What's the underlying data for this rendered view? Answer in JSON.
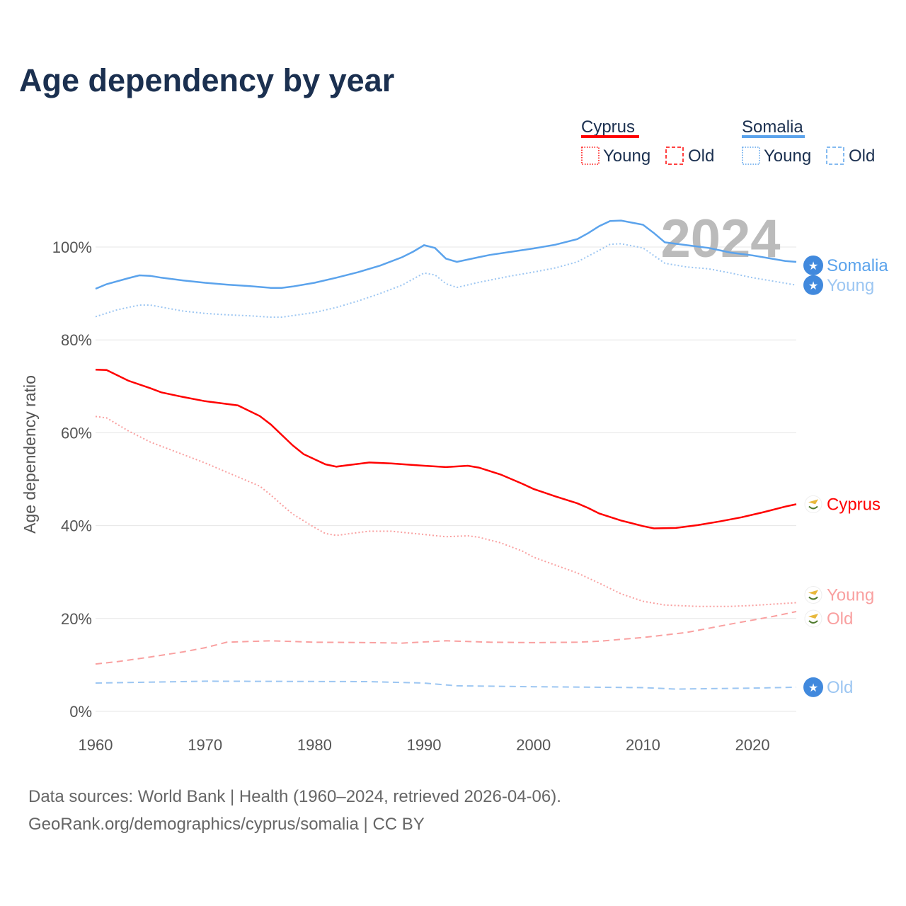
{
  "title": "Age dependency by year",
  "footer": {
    "line1": "Data sources: World Bank | Health (1960–2024, retrieved 2026-04-06).",
    "line2": "GeoRank.org/demographics/cyprus/somalia | CC BY"
  },
  "legend": {
    "groups": [
      {
        "name": "Cyprus",
        "color": "#ff0000",
        "young": "Young",
        "old": "Old"
      },
      {
        "name": "Somalia",
        "color": "#5ba3ec",
        "young": "Young",
        "old": "Old"
      }
    ]
  },
  "chart_data": {
    "type": "line",
    "title": "Age dependency by year",
    "xlabel": "",
    "ylabel": "Age dependency ratio",
    "xlim": [
      1960,
      2024
    ],
    "ylim": [
      0,
      110
    ],
    "x_ticks": [
      "1960",
      "1970",
      "1980",
      "1990",
      "2000",
      "2010",
      "2020"
    ],
    "y_ticks": [
      "0%",
      "20%",
      "40%",
      "60%",
      "80%",
      "100%"
    ],
    "grid": true,
    "current_year_label": "2024",
    "series": [
      {
        "name": "Somalia",
        "end_label": "Somalia",
        "color": "#5ba3ec",
        "style": "solid",
        "icon": "somalia-flag",
        "x": [
          1960,
          1961,
          1963,
          1964,
          1965,
          1966,
          1968,
          1970,
          1972,
          1974,
          1976,
          1977,
          1978,
          1980,
          1982,
          1984,
          1986,
          1988,
          1989,
          1990,
          1991,
          1992,
          1993,
          1995,
          1996,
          1998,
          2000,
          2002,
          2004,
          2005,
          2006,
          2007,
          2008,
          2010,
          2011,
          2012,
          2014,
          2016,
          2018,
          2020,
          2022,
          2023,
          2024
        ],
        "y": [
          91,
          92,
          93.3,
          93.9,
          93.8,
          93.4,
          92.8,
          92.3,
          91.9,
          91.6,
          91.2,
          91.2,
          91.5,
          92.3,
          93.4,
          94.6,
          96,
          97.8,
          99,
          100.4,
          99.8,
          97.5,
          96.8,
          97.8,
          98.3,
          99,
          99.7,
          100.5,
          101.7,
          103,
          104.5,
          105.6,
          105.7,
          104.8,
          103,
          101,
          100.4,
          99.8,
          98.8,
          98.2,
          97.4,
          97,
          96.8
        ]
      },
      {
        "name": "Somalia Young",
        "end_label": "Young",
        "color": "#9cc6f2",
        "style": "dotted",
        "icon": "somalia-flag",
        "x": [
          1960,
          1962,
          1964,
          1965,
          1968,
          1970,
          1972,
          1974,
          1976,
          1977,
          1980,
          1982,
          1984,
          1986,
          1988,
          1990,
          1991,
          1992,
          1993,
          1995,
          1998,
          2000,
          2002,
          2004,
          2006,
          2007,
          2008,
          2010,
          2012,
          2014,
          2016,
          2018,
          2020,
          2022,
          2024
        ],
        "y": [
          85,
          86.5,
          87.5,
          87.5,
          86.2,
          85.7,
          85.4,
          85.2,
          84.9,
          84.9,
          85.9,
          87,
          88.4,
          90,
          91.8,
          94.4,
          94,
          92.1,
          91.3,
          92.4,
          93.8,
          94.6,
          95.5,
          96.8,
          99.3,
          100.6,
          100.7,
          99.8,
          96.5,
          95.7,
          95.3,
          94.4,
          93.4,
          92.6,
          91.8
        ]
      },
      {
        "name": "Somalia Old",
        "end_label": "Old",
        "color": "#9cc6f2",
        "style": "dashed",
        "icon": "somalia-flag",
        "x": [
          1960,
          1970,
          1985,
          1990,
          1993,
          2000,
          2010,
          2013,
          2020,
          2024
        ],
        "y": [
          6.1,
          6.5,
          6.4,
          6.1,
          5.5,
          5.3,
          5.1,
          4.8,
          5.0,
          5.2
        ]
      },
      {
        "name": "Cyprus",
        "end_label": "Cyprus",
        "color": "#ff0000",
        "style": "solid",
        "icon": "cyprus-flag",
        "x": [
          1960,
          1961,
          1963,
          1965,
          1966,
          1968,
          1970,
          1972,
          1973,
          1975,
          1976,
          1978,
          1979,
          1981,
          1982,
          1983,
          1985,
          1987,
          1990,
          1992,
          1994,
          1995,
          1997,
          1999,
          2000,
          2002,
          2004,
          2005,
          2006,
          2008,
          2010,
          2011,
          2013,
          2015,
          2017,
          2019,
          2021,
          2023,
          2024
        ],
        "y": [
          73.6,
          73.5,
          71.2,
          69.6,
          68.7,
          67.7,
          66.8,
          66.2,
          65.9,
          63.6,
          61.8,
          57.3,
          55.4,
          53.2,
          52.7,
          53,
          53.6,
          53.4,
          52.9,
          52.6,
          52.9,
          52.5,
          51,
          49,
          47.9,
          46.3,
          44.8,
          43.8,
          42.6,
          41.1,
          39.9,
          39.4,
          39.5,
          40.1,
          40.9,
          41.8,
          42.9,
          44.1,
          44.6
        ]
      },
      {
        "name": "Cyprus Young",
        "end_label": "Young",
        "color": "#f9a0a0",
        "style": "dotted",
        "icon": "cyprus-flag",
        "x": [
          1960,
          1961,
          1963,
          1965,
          1968,
          1970,
          1972,
          1974,
          1975,
          1976,
          1977,
          1978,
          1980,
          1981,
          1982,
          1984,
          1985,
          1987,
          1990,
          1992,
          1994,
          1995,
          1997,
          1999,
          2000,
          2002,
          2004,
          2006,
          2008,
          2010,
          2012,
          2015,
          2018,
          2020,
          2024
        ],
        "y": [
          63.5,
          63.2,
          60.4,
          58,
          55.3,
          53.5,
          51.5,
          49.5,
          48.5,
          46.6,
          44.5,
          42.5,
          39.6,
          38.3,
          37.9,
          38.5,
          38.8,
          38.8,
          38.1,
          37.6,
          37.8,
          37.5,
          36.3,
          34.5,
          33.2,
          31.5,
          29.8,
          27.6,
          25.3,
          23.7,
          22.9,
          22.6,
          22.6,
          22.8,
          23.4
        ]
      },
      {
        "name": "Cyprus Old",
        "end_label": "Old",
        "color": "#f9a0a0",
        "style": "dashed",
        "icon": "cyprus-flag",
        "x": [
          1960,
          1962,
          1965,
          1968,
          1970,
          1972,
          1976,
          1980,
          1985,
          1988,
          1992,
          1996,
          2000,
          2004,
          2006,
          2010,
          2014,
          2018,
          2022,
          2024
        ],
        "y": [
          10.2,
          10.7,
          11.7,
          12.8,
          13.7,
          14.9,
          15.2,
          14.9,
          14.8,
          14.7,
          15.2,
          14.9,
          14.8,
          14.9,
          15.1,
          15.9,
          17.0,
          18.8,
          20.5,
          21.5
        ]
      }
    ]
  }
}
